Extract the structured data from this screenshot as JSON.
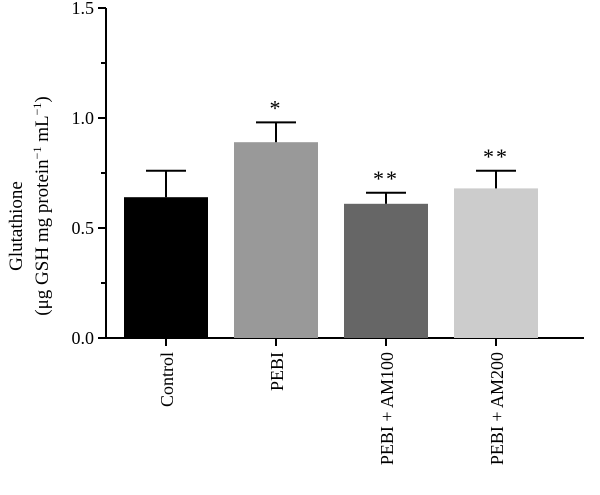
{
  "chart_data": {
    "type": "bar",
    "title": "",
    "ylabel_line1": "Glutathione",
    "ylabel_line2_main": "(μg GSH mg protein",
    "ylabel_line2_sup1": "−1",
    "ylabel_line2_mid": " mL",
    "ylabel_line2_sup2": "−1",
    "ylabel_line2_end": ")",
    "ylim": [
      0,
      1.5
    ],
    "yticks": [
      "0.0",
      "0.5",
      "1.0",
      "1.5"
    ],
    "categories": [
      "Control",
      "PEBI",
      "PEBI + AM100",
      "PEBI + AM200"
    ],
    "values": [
      0.64,
      0.89,
      0.61,
      0.68
    ],
    "errors": [
      0.12,
      0.09,
      0.05,
      0.08
    ],
    "significance": [
      "",
      "*",
      "**",
      "**"
    ],
    "colors": [
      "#000000",
      "#999999",
      "#666666",
      "#cccccc"
    ],
    "grid": false,
    "legend": "none"
  }
}
